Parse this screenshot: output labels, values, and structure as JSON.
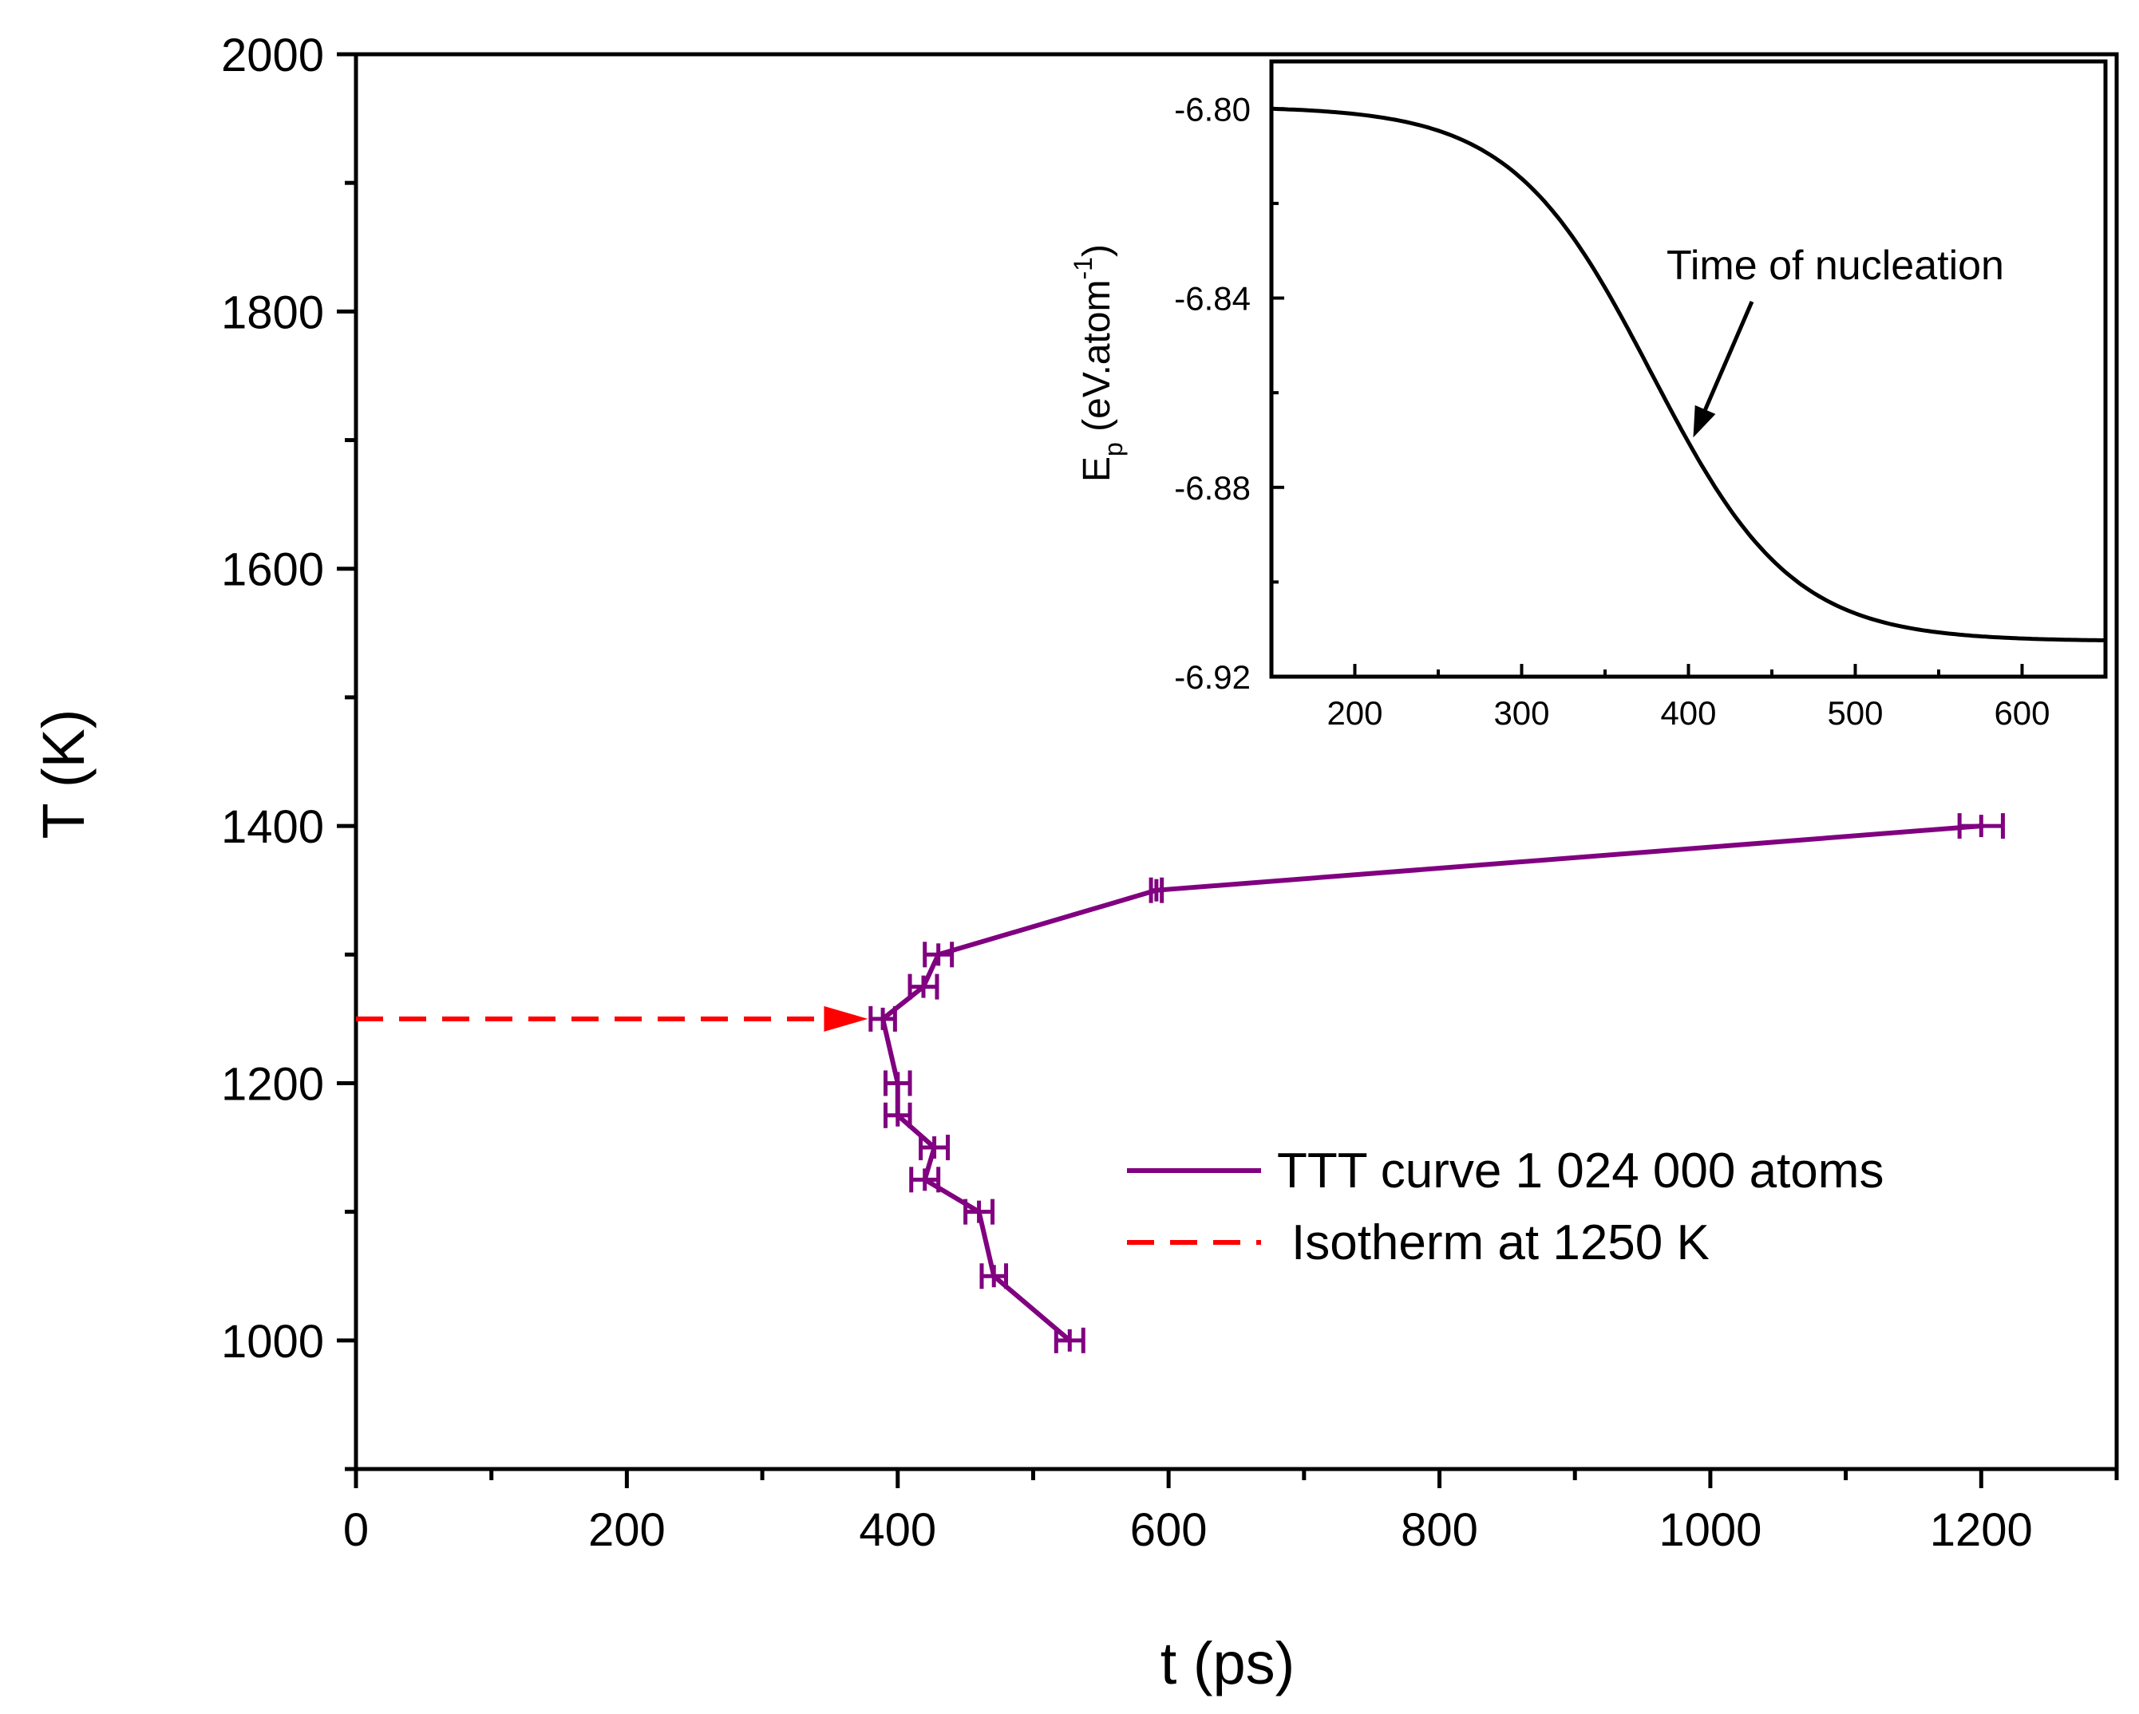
{
  "chart_data": [
    {
      "type": "line",
      "role": "main",
      "title": "",
      "xlabel": "t (ps)",
      "ylabel": "T (K)",
      "xlim": [
        0,
        1300
      ],
      "ylim": [
        900,
        2000
      ],
      "xticks": [
        0,
        200,
        400,
        600,
        800,
        1000,
        1200
      ],
      "yticks": [
        1000,
        1200,
        1400,
        1600,
        1800,
        2000
      ],
      "xticks_minor_step": 100,
      "yticks_minor_step": 100,
      "grid": false,
      "legend_position": "center-right",
      "colors": {
        "ttt": "#800080",
        "isotherm": "#ff0000"
      },
      "series": [
        {
          "name": "TTT curve 1 024 000 atoms",
          "style": "solid line with horizontal error bars",
          "color": "#800080",
          "points": [
            {
              "t": 1200,
              "T": 1400,
              "err": 16
            },
            {
              "t": 591,
              "T": 1350,
              "err": 4
            },
            {
              "t": 430,
              "T": 1300,
              "err": 10
            },
            {
              "t": 419,
              "T": 1275,
              "err": 10
            },
            {
              "t": 389,
              "T": 1250,
              "err": 9
            },
            {
              "t": 400,
              "T": 1200,
              "err": 9
            },
            {
              "t": 400,
              "T": 1175,
              "err": 9
            },
            {
              "t": 427,
              "T": 1150,
              "err": 10
            },
            {
              "t": 420,
              "T": 1125,
              "err": 10
            },
            {
              "t": 460,
              "T": 1100,
              "err": 10
            },
            {
              "t": 471,
              "T": 1050,
              "err": 9
            },
            {
              "t": 527,
              "T": 1000,
              "err": 10
            }
          ]
        },
        {
          "name": "Isotherm at 1250 K",
          "style": "dashed line with arrow head",
          "color": "#ff0000",
          "x": [
            0,
            378
          ],
          "y": [
            1250,
            1250
          ]
        }
      ]
    },
    {
      "type": "line",
      "role": "inset",
      "title": "",
      "xlabel": "",
      "ylabel_main": "E",
      "ylabel_sub": "p",
      "ylabel_rest": " (eV.atom",
      "ylabel_sup": "-1",
      "ylabel_close": ")",
      "xlim": [
        150,
        650
      ],
      "ylim": [
        -6.92,
        -6.79
      ],
      "xticks": [
        200,
        300,
        400,
        500,
        600
      ],
      "yticks": [
        -6.8,
        -6.84,
        -6.88,
        -6.92
      ],
      "ytick_labels": [
        "-6.80",
        "-6.84",
        "-6.88",
        "-6.92"
      ],
      "xticks_minor_step": 50,
      "yticks_minor_step": 0.02,
      "color": "#000000",
      "sigmoid": {
        "Ep_start": -6.7995,
        "Ep_end": -6.9125,
        "t_mid": 378,
        "width": 42,
        "drift_per_ps": -3.5e-05
      },
      "annotation": {
        "text": "Time of nucleation",
        "arrow_to_t": 400
      }
    }
  ]
}
